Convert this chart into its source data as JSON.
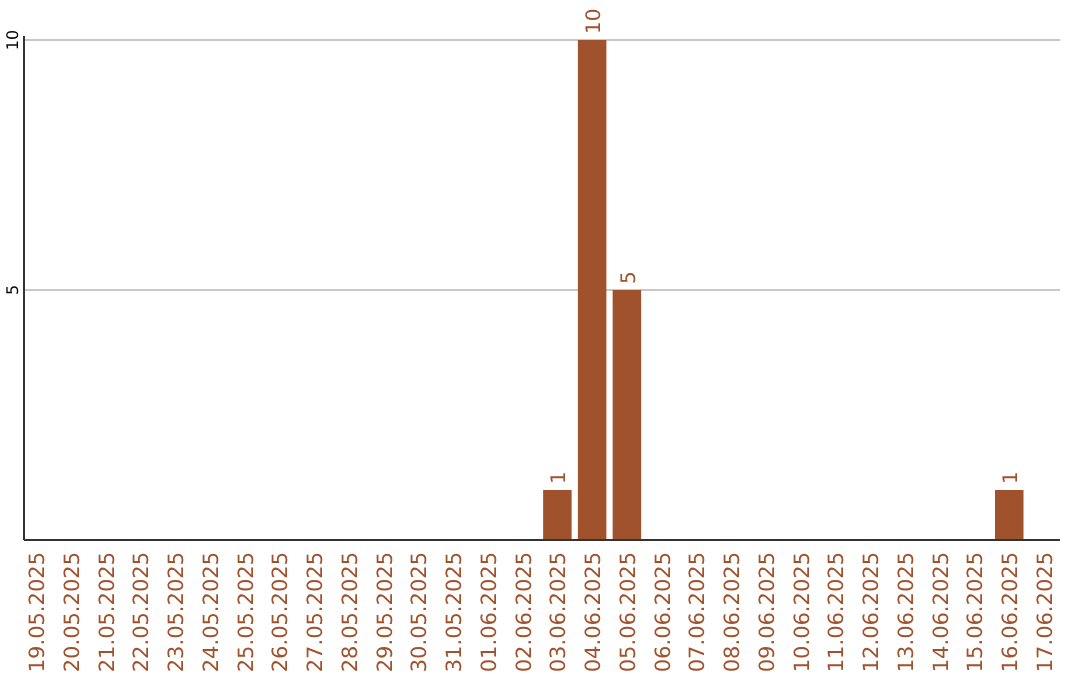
{
  "chart_data": {
    "type": "bar",
    "categories": [
      "19.05.2025",
      "20.05.2025",
      "21.05.2025",
      "22.05.2025",
      "23.05.2025",
      "24.05.2025",
      "25.05.2025",
      "26.05.2025",
      "27.05.2025",
      "28.05.2025",
      "29.05.2025",
      "30.05.2025",
      "31.05.2025",
      "01.06.2025",
      "02.06.2025",
      "03.06.2025",
      "04.06.2025",
      "05.06.2025",
      "06.06.2025",
      "07.06.2025",
      "08.06.2025",
      "09.06.2025",
      "10.06.2025",
      "11.06.2025",
      "12.06.2025",
      "13.06.2025",
      "14.06.2025",
      "15.06.2025",
      "16.06.2025",
      "17.06.2025"
    ],
    "values": [
      0,
      0,
      0,
      0,
      0,
      0,
      0,
      0,
      0,
      0,
      0,
      0,
      0,
      0,
      0,
      1,
      10,
      5,
      0,
      0,
      0,
      0,
      0,
      0,
      0,
      0,
      0,
      0,
      1,
      0
    ],
    "value_labels": [
      null,
      null,
      null,
      null,
      null,
      null,
      null,
      null,
      null,
      null,
      null,
      null,
      null,
      null,
      null,
      "1",
      "10",
      "5",
      null,
      null,
      null,
      null,
      null,
      null,
      null,
      null,
      null,
      null,
      "1",
      null
    ],
    "color": "#a0522d",
    "ylim": [
      0,
      10
    ],
    "yticks": [
      5,
      10
    ],
    "grid": "y"
  }
}
